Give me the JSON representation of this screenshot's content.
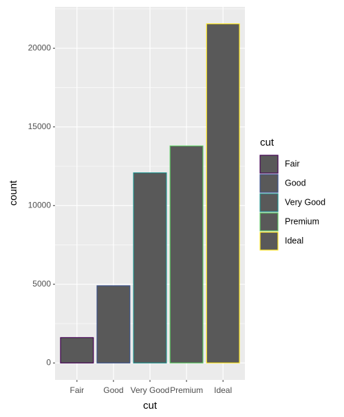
{
  "chart_data": {
    "type": "bar",
    "categories": [
      "Fair",
      "Good",
      "Very Good",
      "Premium",
      "Ideal"
    ],
    "values": [
      1610,
      4906,
      12082,
      13791,
      21551
    ],
    "fill": "#595959",
    "colors": [
      "#440154",
      "#3B528B",
      "#21908C",
      "#5DC863",
      "#FDE725"
    ],
    "x_label": "cut",
    "y_label": "count",
    "legend_title": "cut",
    "ylim": [
      -1077.55,
      22628.55
    ],
    "yticks": [
      0,
      5000,
      10000,
      15000,
      20000
    ],
    "minor_yticks": [
      2500,
      7500,
      12500,
      17500,
      22500
    ],
    "grid": true
  }
}
